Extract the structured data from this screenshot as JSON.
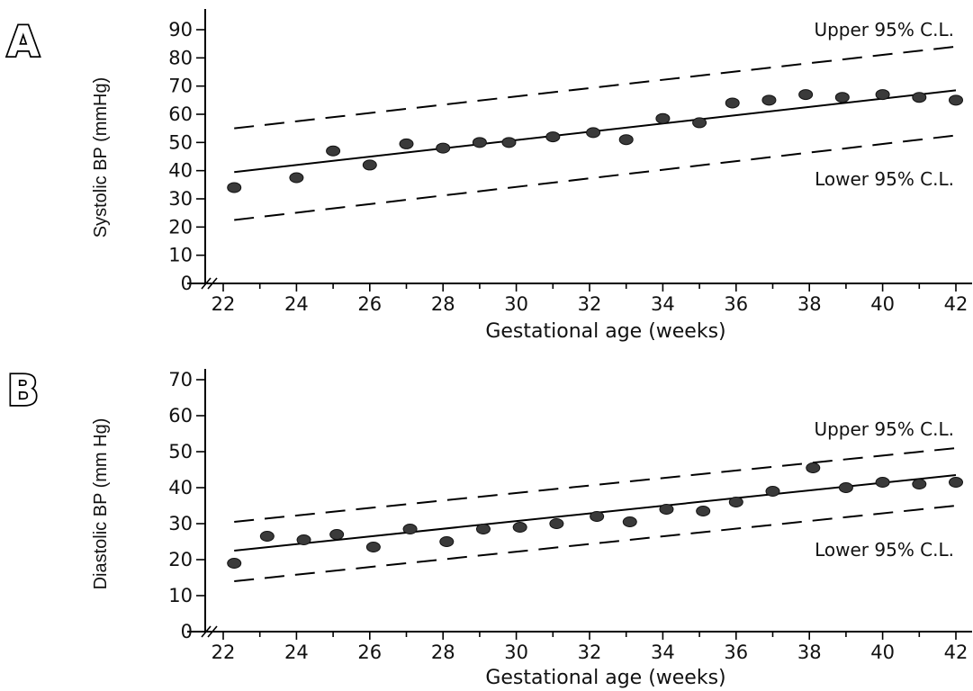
{
  "chart_data": [
    {
      "type": "scatter",
      "panel": "A",
      "xlabel": "Gestational age (weeks)",
      "ylabel": "Systolic BP (mmHg)",
      "xlim": [
        21,
        43
      ],
      "ylim": [
        0,
        95
      ],
      "xticks": [
        22,
        24,
        26,
        28,
        30,
        32,
        34,
        36,
        38,
        40,
        42
      ],
      "yticks": [
        0,
        10,
        20,
        30,
        40,
        50,
        60,
        70,
        80,
        90
      ],
      "axis_break": true,
      "grid": false,
      "points": {
        "x": [
          22.3,
          24,
          25,
          26,
          27,
          28,
          29,
          29.8,
          31,
          32.1,
          33,
          34,
          35,
          35.9,
          36.9,
          37.9,
          38.9,
          40,
          41,
          42
        ],
        "y": [
          34,
          37.5,
          47,
          42,
          49.5,
          48,
          50,
          50,
          52,
          53.5,
          51,
          58.5,
          57,
          64,
          65,
          67,
          66,
          67,
          66,
          65
        ]
      },
      "fit_line": {
        "x": [
          22.3,
          42
        ],
        "y": [
          39.5,
          68.5
        ]
      },
      "upper_cl": {
        "label": "Upper 95% C.L.",
        "x": [
          22.3,
          42
        ],
        "y": [
          55,
          84
        ]
      },
      "lower_cl": {
        "label": "Lower 95% C.L.",
        "x": [
          22.3,
          42
        ],
        "y": [
          22.5,
          52.5
        ]
      }
    },
    {
      "type": "scatter",
      "panel": "B",
      "xlabel": "Gestational age (weeks)",
      "ylabel": "Diastolic BP (mm Hg)",
      "xlim": [
        21,
        43
      ],
      "ylim": [
        0,
        72
      ],
      "xticks": [
        22,
        24,
        26,
        28,
        30,
        32,
        34,
        36,
        38,
        40,
        42
      ],
      "yticks": [
        0,
        10,
        20,
        30,
        40,
        50,
        60,
        70
      ],
      "axis_break": true,
      "grid": false,
      "points": {
        "x": [
          22.3,
          23.2,
          24.2,
          25.1,
          26.1,
          27.1,
          28.1,
          29.1,
          30.1,
          31.1,
          32.2,
          33.1,
          34.1,
          35.1,
          36,
          37,
          38.1,
          39,
          40,
          41,
          42
        ],
        "y": [
          19,
          26.5,
          25.5,
          27,
          23.5,
          28.5,
          25,
          28.5,
          29,
          30,
          32,
          30.5,
          34,
          33.5,
          36,
          39,
          45.5,
          40,
          41.5,
          41,
          41.5
        ]
      },
      "fit_line": {
        "x": [
          22.3,
          42
        ],
        "y": [
          22.5,
          43.5
        ]
      },
      "upper_cl": {
        "label": "Upper 95% C.L.",
        "x": [
          22.3,
          42
        ],
        "y": [
          30.5,
          51
        ]
      },
      "lower_cl": {
        "label": "Lower 95% C.L.",
        "x": [
          22.3,
          42
        ],
        "y": [
          14,
          35
        ]
      }
    }
  ]
}
